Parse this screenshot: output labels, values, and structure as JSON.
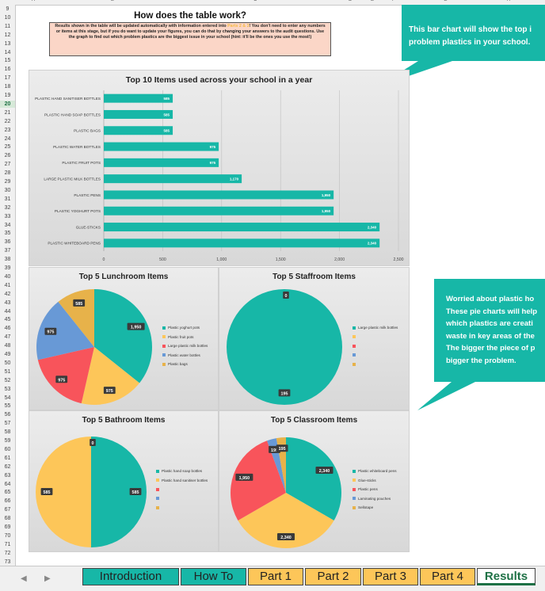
{
  "columns": [
    "A",
    "B",
    "C",
    "D",
    "E",
    "F",
    "G",
    "H"
  ],
  "rows": [
    "9",
    "10",
    "11",
    "12",
    "13",
    "14",
    "15",
    "16",
    "17",
    "18",
    "19",
    "20",
    "21",
    "22",
    "23",
    "24",
    "25",
    "26",
    "27",
    "28",
    "29",
    "30",
    "31",
    "32",
    "33",
    "34",
    "35",
    "36",
    "37",
    "38",
    "39",
    "40",
    "41",
    "42",
    "43",
    "44",
    "45",
    "46",
    "47",
    "48",
    "49",
    "50",
    "51",
    "52",
    "53",
    "54",
    "55",
    "56",
    "57",
    "58",
    "59",
    "60",
    "61",
    "62",
    "63",
    "64",
    "65",
    "66",
    "67",
    "68",
    "69",
    "70",
    "71",
    "72",
    "73"
  ],
  "selected_row": "20",
  "sheet": {
    "title": "How does the table work?",
    "info_1": "Results shown in the table will be updated automatically with information entered into",
    "info_hl": "Parts 2 & 3",
    "info_2": "! You don't need to enter any numbers or items at this stage, but if you do want to update your figures, you can do that by changing your answers to the audit questions. Use the graph to find out which problem plastics are the biggest issue in your school (hint: it'll be the ones you use the most!)"
  },
  "callouts": {
    "bar": {
      "lines": [
        "This bar chart will show the top i",
        "problem plastics in your school."
      ],
      "color": "#17b7a7"
    },
    "pie": {
      "lines": [
        "Worried about plastic ho",
        "These pie charts will help",
        "which plastics are creati",
        "waste in key areas of the",
        "The bigger the piece of p",
        "bigger the problem."
      ],
      "color": "#17b7a7"
    }
  },
  "chart_data": [
    {
      "type": "bar",
      "orientation": "horizontal",
      "title": "Top 10 Items used across your school in a year",
      "categories": [
        "PLASTIC HAND SANITISER BOTTLES",
        "PLASTIC HAND SOAP BOTTLES",
        "PLASTIC BAGS",
        "PLASTIC WATER BOTTLES",
        "PLASTIC FRUIT POTS",
        "LARGE PLASTIC MILK BOTTLES",
        "PLASTIC PENS",
        "PLASTIC YOGHURT POTS",
        "GLUE-STICKS",
        "PLASTIC WHITEBOARD PENS"
      ],
      "values": [
        585,
        585,
        585,
        975,
        975,
        1170,
        1950,
        1950,
        2340,
        2340
      ],
      "value_labels": [
        "585",
        "585",
        "585",
        "975",
        "975",
        "1,170",
        "1,950",
        "1,950",
        "2,340",
        "2,340"
      ],
      "xlim": [
        0,
        2500
      ],
      "ticks": [
        0,
        500,
        1000,
        1500,
        2000,
        2500
      ],
      "tick_labels": [
        "0",
        "500",
        "1,000",
        "1,500",
        "2,000",
        "2,500"
      ],
      "color": "#17b7a7",
      "grid": true
    },
    {
      "type": "pie",
      "title": "Top 5 Lunchroom Items",
      "labels": [
        "Plastic yoghurt pots",
        "Plastic fruit pots",
        "Large plastic milk bottles",
        "Plastic water bottles",
        "Plastic bags"
      ],
      "values": [
        1950,
        975,
        975,
        975,
        585
      ],
      "value_labels": [
        "1,950",
        "975",
        "975",
        "975",
        "585"
      ],
      "colors": [
        "#17b7a7",
        "#fdc659",
        "#f8545b",
        "#6899d6",
        "#e7b24a"
      ]
    },
    {
      "type": "pie",
      "title": "Top 5 Staffroom Items",
      "labels": [
        "Large plastic milk bottles",
        "",
        "",
        "",
        ""
      ],
      "values": [
        195,
        0,
        0,
        0,
        0
      ],
      "value_labels": [
        "195",
        "0",
        "",
        "",
        ""
      ],
      "colors": [
        "#17b7a7",
        "#fdc659",
        "#f8545b",
        "#6899d6",
        "#e7b24a"
      ]
    },
    {
      "type": "pie",
      "title": "Top 5 Bathroom Items",
      "labels": [
        "Plastic hand soap bottles",
        "Plastic hand sanitiser bottles",
        "",
        "",
        ""
      ],
      "values": [
        585,
        585,
        0,
        0,
        0
      ],
      "value_labels": [
        "585",
        "585",
        "0",
        "",
        ""
      ],
      "colors": [
        "#17b7a7",
        "#fdc659",
        "#f8545b",
        "#6899d6",
        "#e7b24a"
      ]
    },
    {
      "type": "pie",
      "title": "Top 5 Classroom Items",
      "labels": [
        "Plastic whiteboard pens",
        "Glue-sticks",
        "Plastic pens",
        "Laminating pouches",
        "Sellotape"
      ],
      "values": [
        2340,
        2340,
        1950,
        195,
        195
      ],
      "value_labels": [
        "2,340",
        "2,340",
        "1,950",
        "195",
        "195"
      ],
      "colors": [
        "#17b7a7",
        "#fdc659",
        "#f8545b",
        "#6899d6",
        "#e7b24a"
      ]
    }
  ],
  "tabs": [
    {
      "label": "Introduction",
      "color": "#17b7a7",
      "active": false
    },
    {
      "label": "How To",
      "color": "#17b7a7",
      "active": false
    },
    {
      "label": "Part 1",
      "color": "#fdc659",
      "active": false
    },
    {
      "label": "Part 2",
      "color": "#fdc659",
      "active": false
    },
    {
      "label": "Part 3",
      "color": "#fdc659",
      "active": false
    },
    {
      "label": "Part 4",
      "color": "#fdc659",
      "active": false
    },
    {
      "label": "Results",
      "color": "#ffffff",
      "active": true
    }
  ],
  "nav": {
    "prev_icon": "triangle-left-icon",
    "next_icon": "triangle-right-icon"
  }
}
